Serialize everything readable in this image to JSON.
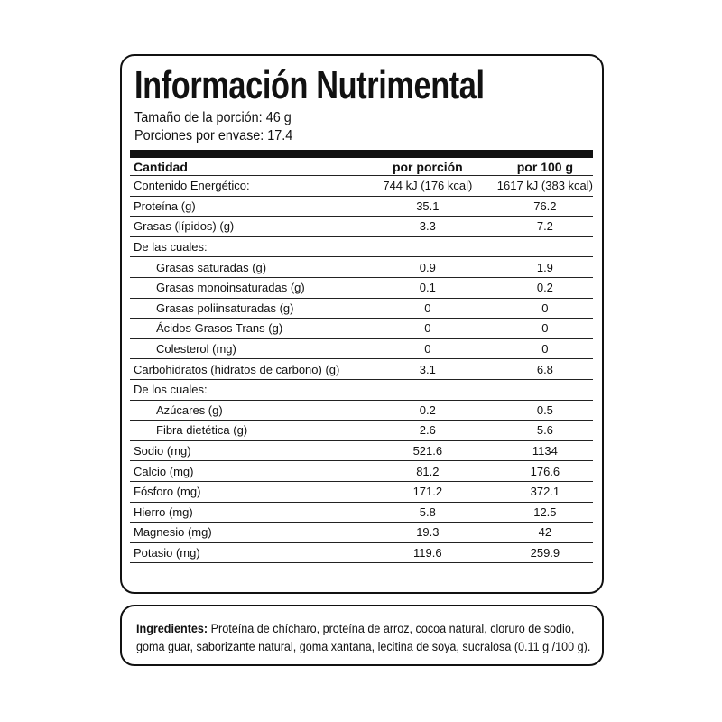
{
  "title": "Información Nutrimental",
  "serving_size": "Tamaño de la porción: 46 g",
  "servings_per_container": "Porciones por envase: 17.4",
  "header": {
    "label": "Cantidad",
    "per_serving": "por porción",
    "per_100g": "por 100 g"
  },
  "rows": [
    {
      "label": "Contenido Energético:",
      "per_serving": "744 kJ (176 kcal)",
      "per_100g": "1617 kJ (383 kcal)",
      "indent": false
    },
    {
      "label": "Proteína (g)",
      "per_serving": "35.1",
      "per_100g": "76.2",
      "indent": false
    },
    {
      "label": "Grasas (lípidos) (g)",
      "per_serving": "3.3",
      "per_100g": "7.2",
      "indent": false
    },
    {
      "label": "De las cuales:",
      "per_serving": "",
      "per_100g": "",
      "indent": false
    },
    {
      "label": "Grasas saturadas (g)",
      "per_serving": "0.9",
      "per_100g": "1.9",
      "indent": true
    },
    {
      "label": "Grasas monoinsaturadas (g)",
      "per_serving": "0.1",
      "per_100g": "0.2",
      "indent": true
    },
    {
      "label": "Grasas poliinsaturadas (g)",
      "per_serving": "0",
      "per_100g": "0",
      "indent": true
    },
    {
      "label": "Ácidos Grasos Trans (g)",
      "per_serving": "0",
      "per_100g": "0",
      "indent": true
    },
    {
      "label": "Colesterol (mg)",
      "per_serving": "0",
      "per_100g": "0",
      "indent": true
    },
    {
      "label": "Carbohidratos (hidratos de carbono) (g)",
      "per_serving": "3.1",
      "per_100g": "6.8",
      "indent": false
    },
    {
      "label": "De los cuales:",
      "per_serving": "",
      "per_100g": "",
      "indent": false
    },
    {
      "label": "Azúcares (g)",
      "per_serving": "0.2",
      "per_100g": "0.5",
      "indent": true
    },
    {
      "label": "Fibra dietética (g)",
      "per_serving": "2.6",
      "per_100g": "5.6",
      "indent": true
    },
    {
      "label": "Sodio  (mg)",
      "per_serving": "521.6",
      "per_100g": "1134",
      "indent": false
    },
    {
      "label": "Calcio  (mg)",
      "per_serving": "81.2",
      "per_100g": "176.6",
      "indent": false
    },
    {
      "label": "Fósforo  (mg)",
      "per_serving": "171.2",
      "per_100g": "372.1",
      "indent": false
    },
    {
      "label": "Hierro (mg)",
      "per_serving": "5.8",
      "per_100g": "12.5",
      "indent": false
    },
    {
      "label": "Magnesio (mg)",
      "per_serving": "19.3",
      "per_100g": "42",
      "indent": false
    },
    {
      "label": "Potasio (mg)",
      "per_serving": "119.6",
      "per_100g": "259.9",
      "indent": false
    }
  ],
  "ingredients": {
    "label": "Ingredientes:",
    "text": " Proteína de chícharo, proteína de arroz, cocoa natural, cloruro de sodio, goma guar, saborizante natural, goma xantana, lecitina de soya, sucralosa (0.11 g /100 g)."
  }
}
